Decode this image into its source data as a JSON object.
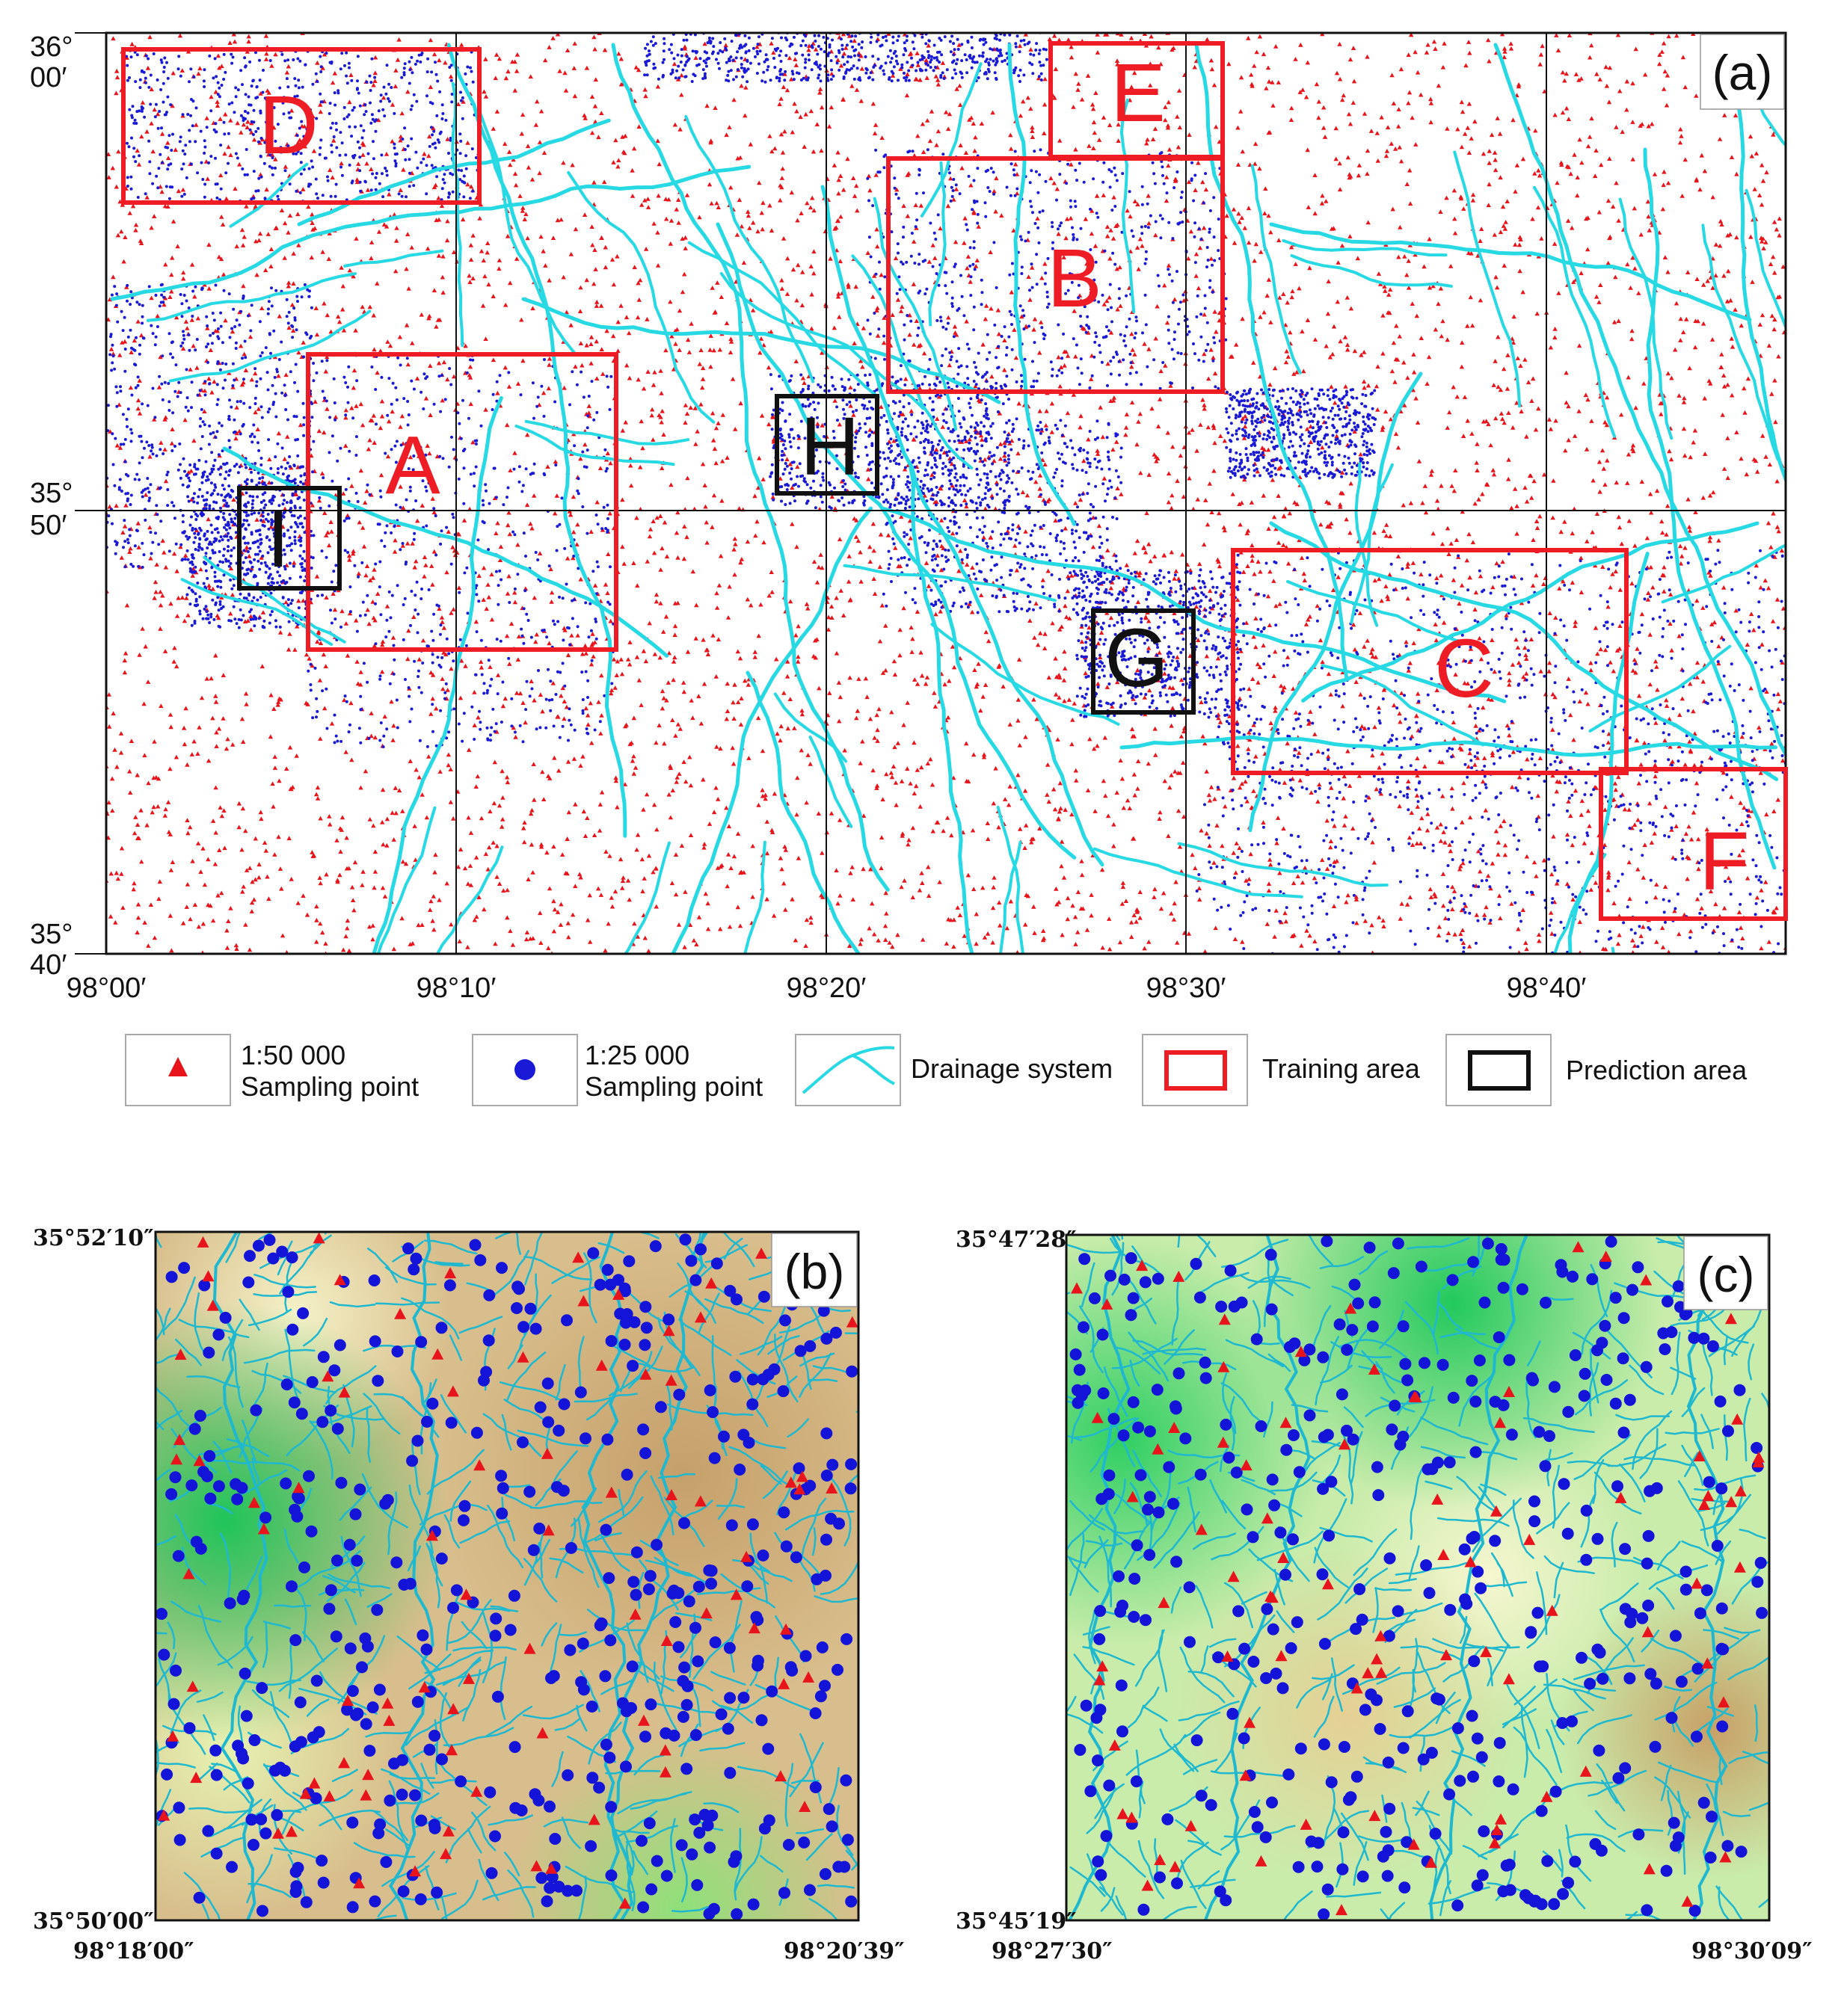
{
  "panel_a": {
    "tag": "(a)",
    "y_ticks": [
      {
        "deg": "36°",
        "min": "00′"
      },
      {
        "deg": "35°",
        "min": "50′"
      },
      {
        "deg": "35°",
        "min": "40′"
      }
    ],
    "x_ticks": [
      "98°00′",
      "98°10′",
      "98°20′",
      "98°30′",
      "98°40′"
    ],
    "training_areas": [
      "A",
      "B",
      "C",
      "D",
      "E",
      "F"
    ],
    "prediction_areas": [
      "G",
      "H",
      "I"
    ],
    "colors": {
      "sample_50k": "#e8141c",
      "sample_25k": "#1a1ad6",
      "drainage": "#27d9e3",
      "training": "#ee1c24",
      "prediction": "#111111"
    }
  },
  "legend": {
    "items": [
      {
        "icon": "red-triangle-icon",
        "line1": "1:50 000",
        "line2": "Sampling point"
      },
      {
        "icon": "blue-dot-icon",
        "line1": "1:25 000",
        "line2": "Sampling point"
      },
      {
        "icon": "drainage-line-icon",
        "line1": "Drainage system",
        "line2": ""
      },
      {
        "icon": "red-box-icon",
        "line1": "Training area",
        "line2": ""
      },
      {
        "icon": "black-box-icon",
        "line1": "Prediction area",
        "line2": ""
      }
    ]
  },
  "panel_b": {
    "tag": "(b)",
    "top_left": "35°52′10″",
    "bottom_left": "35°50′00″",
    "bottom_left_x": "98°18′00″",
    "bottom_right_x": "98°20′39″"
  },
  "panel_c": {
    "tag": "(c)",
    "top_left": "35°47′28″",
    "bottom_left": "35°45′19″",
    "bottom_left_x": "98°27′30″",
    "bottom_right_x": "98°30′09″"
  }
}
